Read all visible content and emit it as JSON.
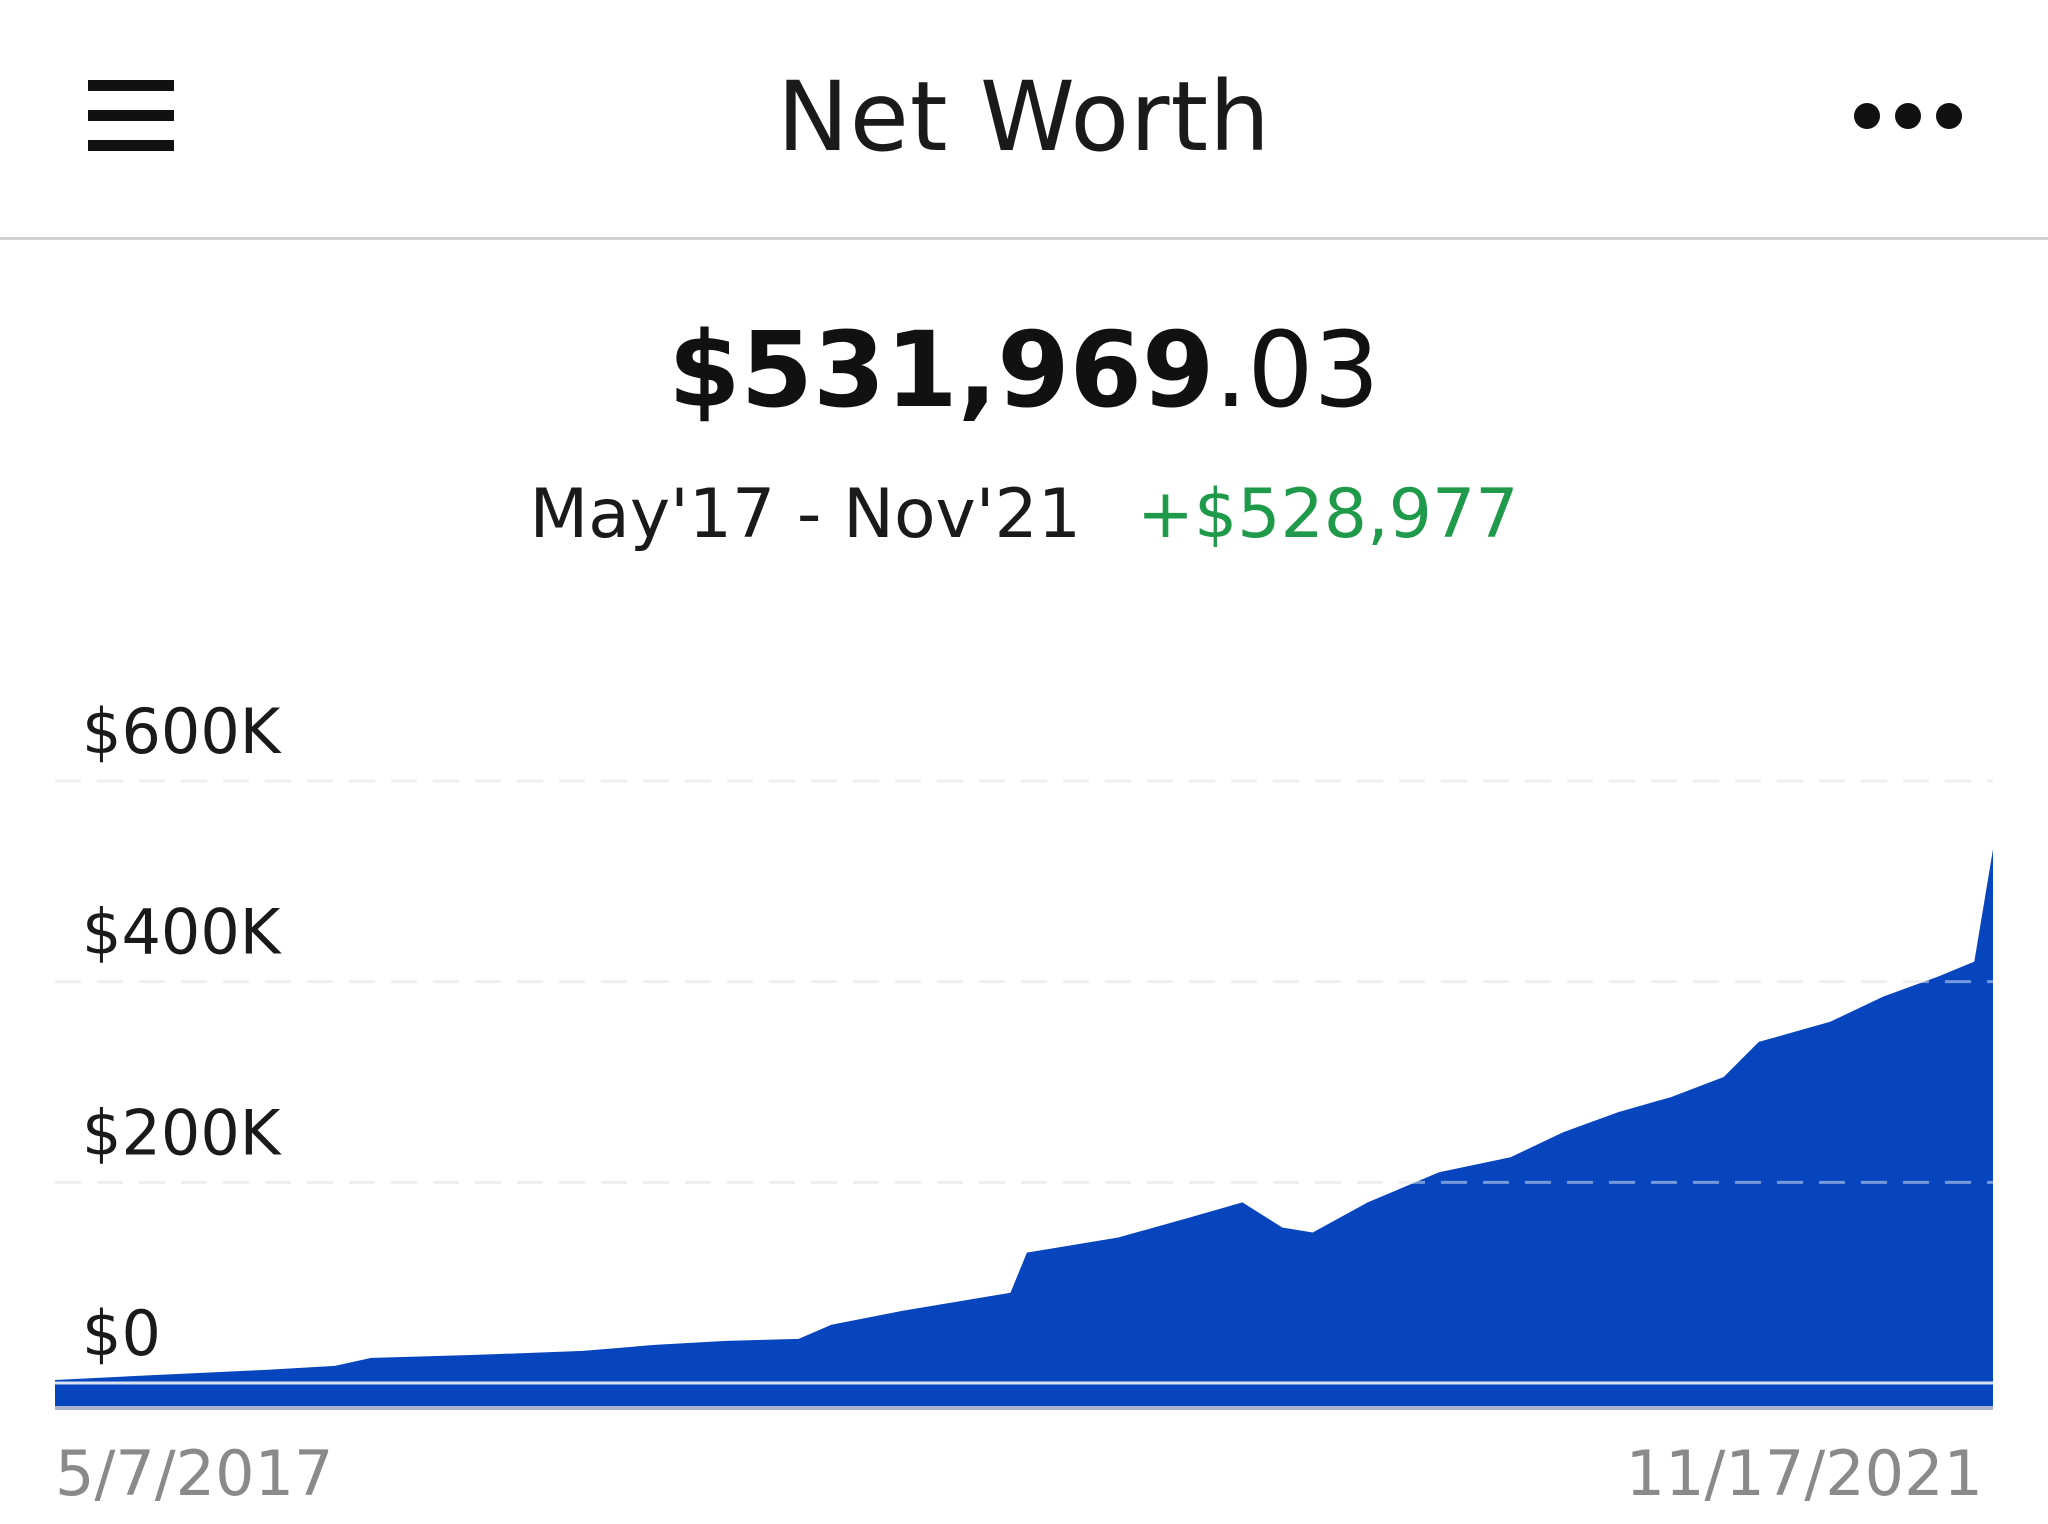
{
  "header": {
    "title": "Net Worth",
    "menu_icon": "hamburger-menu-icon",
    "more_icon": "more-options-icon"
  },
  "summary": {
    "total_whole": "$531,969",
    "total_cents": ".03",
    "range_label": "May'17 - Nov'21",
    "change_label": "+$528,977",
    "change_color": "#1f9a4a"
  },
  "chart_data": {
    "type": "area",
    "title": "",
    "xlabel": "",
    "ylabel": "",
    "color": "#0645bd",
    "ylim": [
      0,
      600000
    ],
    "y_ticks": [
      {
        "value": 600000,
        "label": "$600K"
      },
      {
        "value": 400000,
        "label": "$400K"
      },
      {
        "value": 200000,
        "label": "$200K"
      },
      {
        "value": 0,
        "label": "$0"
      }
    ],
    "x_labels": [
      "5/7/2017",
      "11/17/2021"
    ],
    "grid": true,
    "x": [
      "2017-05-07",
      "2017-08-01",
      "2017-11-01",
      "2018-01-01",
      "2018-02-01",
      "2018-05-01",
      "2018-08-01",
      "2018-10-01",
      "2018-12-01",
      "2019-02-01",
      "2019-03-01",
      "2019-05-01",
      "2019-08-01",
      "2019-08-15",
      "2019-11-01",
      "2020-01-01",
      "2020-02-15",
      "2020-03-20",
      "2020-04-15",
      "2020-06-01",
      "2020-08-01",
      "2020-10-01",
      "2020-11-15",
      "2021-01-01",
      "2021-02-15",
      "2021-04-01",
      "2021-05-01",
      "2021-07-01",
      "2021-08-15",
      "2021-10-01",
      "2021-11-01",
      "2021-11-17"
    ],
    "series": [
      {
        "values": [
          3000,
          8000,
          13000,
          17000,
          25000,
          28000,
          32000,
          38000,
          42000,
          44000,
          58000,
          72000,
          90000,
          130000,
          145000,
          165000,
          180000,
          155000,
          150000,
          180000,
          210000,
          225000,
          250000,
          270000,
          285000,
          305000,
          340000,
          360000,
          385000,
          405000,
          420000,
          531969
        ]
      }
    ]
  }
}
